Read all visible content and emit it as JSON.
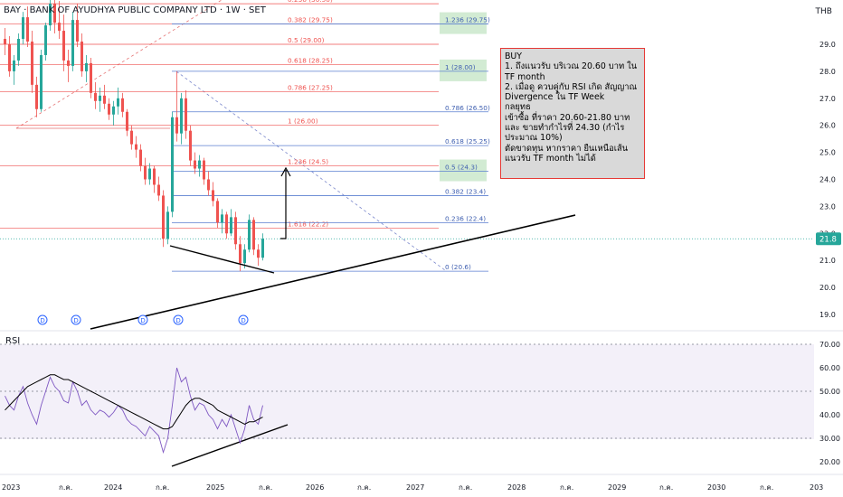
{
  "header": {
    "title": "BAY · BANK OF AYUDHYA PUBLIC COMPANY LTD · 1W · SET",
    "currency": "THB"
  },
  "indicator": {
    "label": "RSI"
  },
  "note": {
    "text": "BUY\n1. ถึงแนวรับ บริเวณ 20.60 บาท ใน TF month\n2. เมื่อดู ควบคู่กับ RSI เกิด สัญญาณ Divergence ใน TF Week\nกลยุทธ\nเข้าซื้อ ที่ราคา 20.60-21.80 บาท และ ขายทำกำไรที่ 24.30 (กำไรประมาณ 10%)\nตัดขาดทุน หากราคา ยืนเหนือเส้น แนวรับ TF month ไม่ได้"
  },
  "chart_data": {
    "type": "candlestick",
    "symbol": "BAY",
    "timeframe": "1W",
    "price_axis": {
      "ticks": [
        "29.0",
        "28.0",
        "27.0",
        "26.0",
        "25.0",
        "24.0",
        "23.0",
        "22.0",
        "21.0",
        "20.0",
        "19.0"
      ],
      "range": [
        18.5,
        30.8
      ]
    },
    "last_price": {
      "label": "21.8",
      "value": 21.8,
      "color": "#26a69a"
    },
    "rsi_axis": {
      "ticks": [
        "70.00",
        "60.00",
        "50.00",
        "40.00",
        "30.00",
        "20.00"
      ],
      "range": [
        15,
        72
      ],
      "overbought": 70,
      "midline": 50,
      "oversold": 30
    },
    "x_axis": {
      "ticks": [
        "2023",
        "ก.ค.",
        "2024",
        "ก.ค.",
        "2025",
        "ก.ค.",
        "2026",
        "ก.ค.",
        "2027",
        "ก.ค.",
        "2028",
        "ก.ค.",
        "2029",
        "ก.ค.",
        "2030",
        "ก.ค.",
        "203"
      ]
    },
    "fib_red": [
      {
        "label": "0.236 (30.50)",
        "value": 30.5
      },
      {
        "label": "0.382 (29.75)",
        "value": 29.75
      },
      {
        "label": "0.5 (29.00)",
        "value": 29.0
      },
      {
        "label": "0.618 (28.25)",
        "value": 28.25
      },
      {
        "label": "0.786 (27.25)",
        "value": 27.25
      },
      {
        "label": "1 (26.00)",
        "value": 26.0
      },
      {
        "label": "1.236 (24.5)",
        "value": 24.5
      },
      {
        "label": "1.618 (22.2)",
        "value": 22.2
      }
    ],
    "fib_blue": [
      {
        "label": "1.236 (29.75)",
        "value": 29.75,
        "highlight": true
      },
      {
        "label": "1 (28.00)",
        "value": 28.0,
        "highlight": true
      },
      {
        "label": "0.786 (26.50)",
        "value": 26.5
      },
      {
        "label": "0.618 (25.25)",
        "value": 25.25
      },
      {
        "label": "0.5 (24.3)",
        "value": 24.3,
        "highlight": true
      },
      {
        "label": "0.382 (23.4)",
        "value": 23.4
      },
      {
        "label": "0.236 (22.4)",
        "value": 22.4
      },
      {
        "label": "0 (20.6)",
        "value": 20.6
      }
    ],
    "dividend_markers": [
      "D",
      "D",
      "D",
      "D",
      "D"
    ],
    "candles": [
      [
        29.2,
        29.6,
        28.6,
        29.0
      ],
      [
        29.0,
        29.3,
        27.8,
        28.0
      ],
      [
        28.0,
        28.6,
        27.5,
        28.4
      ],
      [
        28.4,
        29.4,
        28.2,
        29.2
      ],
      [
        29.2,
        30.2,
        29.0,
        30.0
      ],
      [
        30.0,
        30.4,
        28.9,
        29.1
      ],
      [
        29.1,
        29.5,
        27.2,
        27.5
      ],
      [
        27.5,
        27.8,
        26.3,
        26.6
      ],
      [
        26.6,
        28.8,
        26.5,
        28.6
      ],
      [
        28.6,
        29.8,
        28.4,
        29.7
      ],
      [
        29.7,
        30.8,
        29.5,
        30.5
      ],
      [
        30.5,
        30.9,
        29.4,
        29.8
      ],
      [
        29.8,
        30.6,
        29.2,
        29.5
      ],
      [
        29.5,
        30.1,
        28.0,
        28.4
      ],
      [
        28.4,
        28.8,
        27.6,
        28.2
      ],
      [
        28.2,
        30.2,
        28.0,
        29.9
      ],
      [
        29.9,
        30.5,
        28.9,
        29.1
      ],
      [
        29.1,
        29.4,
        27.8,
        28.0
      ],
      [
        28.0,
        28.6,
        27.6,
        28.3
      ],
      [
        28.3,
        28.5,
        27.0,
        27.2
      ],
      [
        27.2,
        27.6,
        26.6,
        26.9
      ],
      [
        26.9,
        27.4,
        26.5,
        27.1
      ],
      [
        27.1,
        27.5,
        26.6,
        26.8
      ],
      [
        26.8,
        27.0,
        26.2,
        26.4
      ],
      [
        26.4,
        26.9,
        26.0,
        26.7
      ],
      [
        26.7,
        27.4,
        26.4,
        27.0
      ],
      [
        27.0,
        27.2,
        26.3,
        26.5
      ],
      [
        26.5,
        26.6,
        25.6,
        25.8
      ],
      [
        25.8,
        26.0,
        25.1,
        25.3
      ],
      [
        25.3,
        25.6,
        24.8,
        25.1
      ],
      [
        25.1,
        25.3,
        24.3,
        24.5
      ],
      [
        24.5,
        24.8,
        23.8,
        24.0
      ],
      [
        24.0,
        24.6,
        23.8,
        24.4
      ],
      [
        24.4,
        24.5,
        23.5,
        23.8
      ],
      [
        23.8,
        24.1,
        23.2,
        23.4
      ],
      [
        23.4,
        23.6,
        21.5,
        21.8
      ],
      [
        21.8,
        23.0,
        21.6,
        22.8
      ],
      [
        22.8,
        26.5,
        22.6,
        26.3
      ],
      [
        26.3,
        28.0,
        25.4,
        25.7
      ],
      [
        25.7,
        27.2,
        25.3,
        27.0
      ],
      [
        27.0,
        27.3,
        25.5,
        25.8
      ],
      [
        25.8,
        26.0,
        24.5,
        24.7
      ],
      [
        24.7,
        25.0,
        24.2,
        24.4
      ],
      [
        24.4,
        24.9,
        24.1,
        24.7
      ],
      [
        24.7,
        24.8,
        23.8,
        24.0
      ],
      [
        24.0,
        24.3,
        23.4,
        23.6
      ],
      [
        23.6,
        23.9,
        23.0,
        23.2
      ],
      [
        23.2,
        23.3,
        22.2,
        22.4
      ],
      [
        22.4,
        22.9,
        22.0,
        22.7
      ],
      [
        22.7,
        22.8,
        21.8,
        22.0
      ],
      [
        22.0,
        22.9,
        21.9,
        22.6
      ],
      [
        22.6,
        22.8,
        21.4,
        21.6
      ],
      [
        21.6,
        21.9,
        20.6,
        20.9
      ],
      [
        20.9,
        21.6,
        20.7,
        21.4
      ],
      [
        21.4,
        22.7,
        21.3,
        22.5
      ],
      [
        22.5,
        22.6,
        21.2,
        21.4
      ],
      [
        21.4,
        21.6,
        20.8,
        21.1
      ],
      [
        21.1,
        22.0,
        21.0,
        21.8
      ]
    ],
    "rsi": [
      48,
      44,
      42,
      48,
      52,
      45,
      40,
      36,
      44,
      50,
      56,
      52,
      50,
      46,
      45,
      54,
      50,
      44,
      46,
      42,
      40,
      42,
      41,
      39,
      41,
      44,
      42,
      38,
      36,
      35,
      33,
      31,
      35,
      33,
      31,
      24,
      30,
      44,
      60,
      54,
      56,
      48,
      42,
      45,
      44,
      40,
      38,
      34,
      38,
      35,
      40,
      34,
      28,
      34,
      44,
      38,
      36,
      44
    ],
    "rsi_ma": [
      42,
      44,
      46,
      48,
      50,
      52,
      53,
      54,
      55,
      56,
      57,
      57,
      56,
      55,
      55,
      54,
      53,
      52,
      51,
      50,
      49,
      48,
      47,
      46,
      45,
      44,
      43,
      42,
      41,
      40,
      39,
      38,
      37,
      36,
      35,
      34,
      34,
      35,
      38,
      41,
      44,
      46,
      47,
      47,
      46,
      45,
      44,
      42,
      41,
      40,
      39,
      38,
      37,
      36,
      37,
      37,
      38,
      39
    ]
  }
}
